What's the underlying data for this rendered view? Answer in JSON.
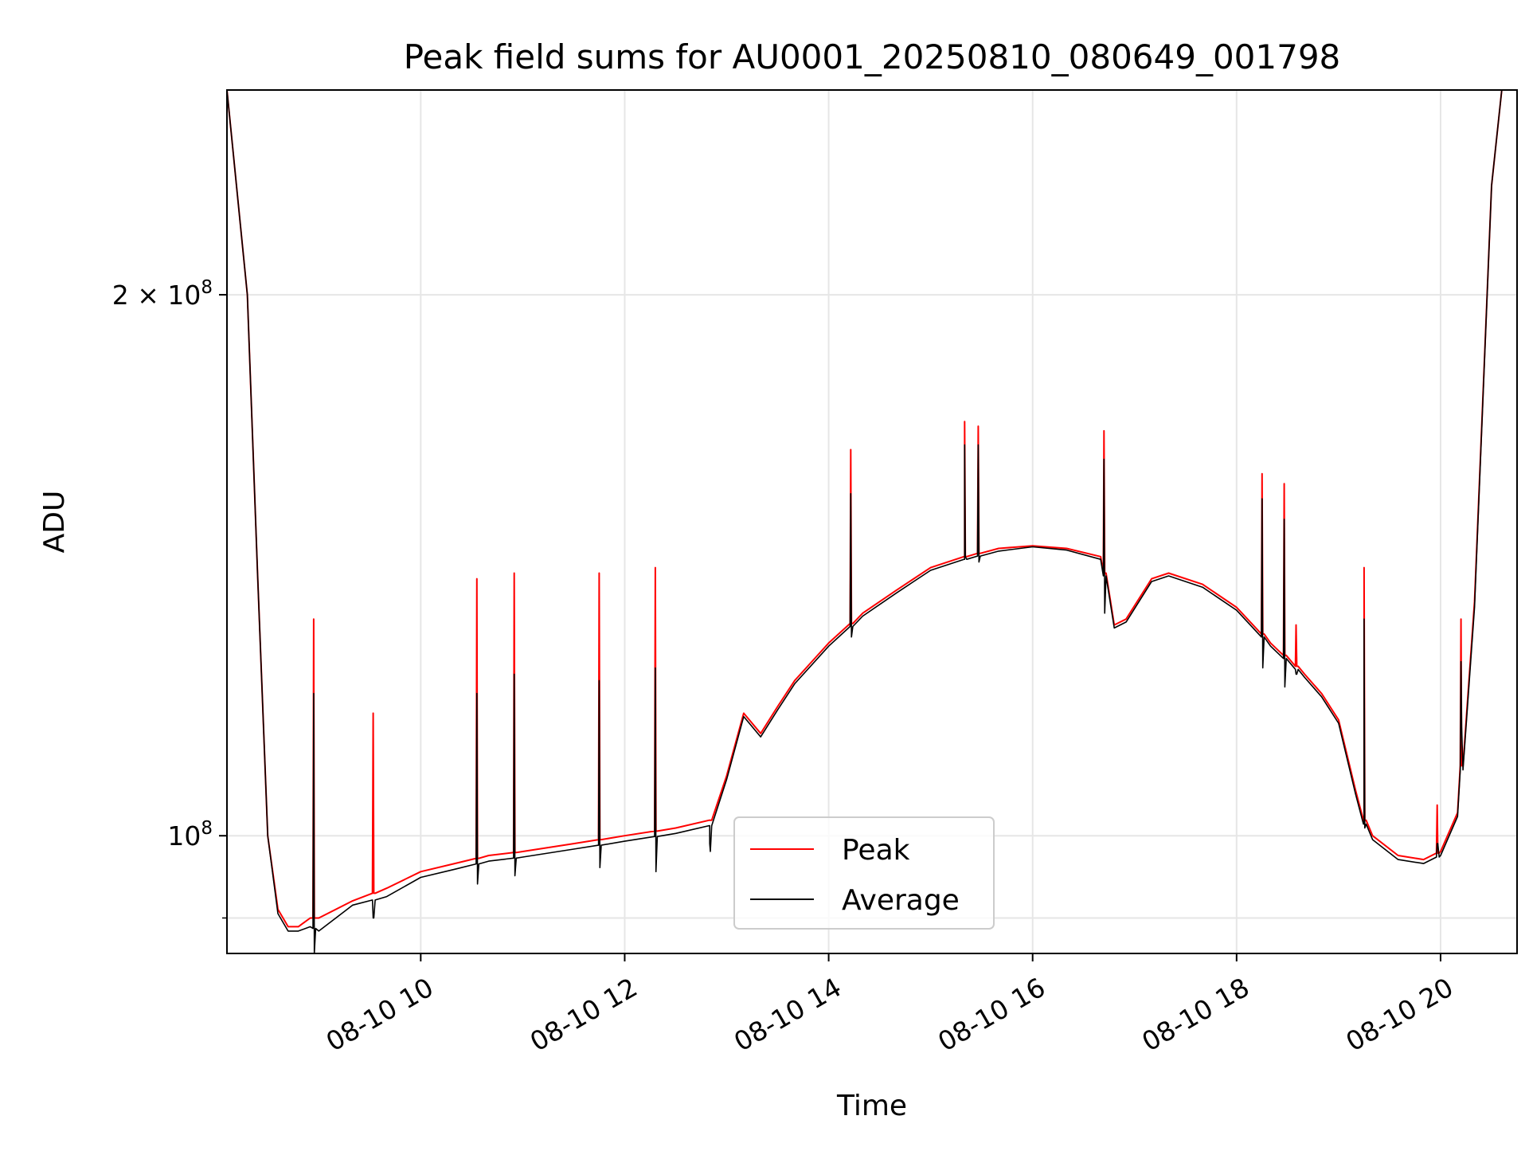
{
  "chart_data": {
    "type": "line",
    "title": "Peak field sums for AU0001_20250810_080649_001798",
    "xlabel": "Time",
    "ylabel": "ADU",
    "x_format": "MM-DD HH",
    "xlim": [
      "2025-08-10 08:06",
      "2025-08-10 20:45"
    ],
    "ylim": [
      86000000,
      260000000
    ],
    "yscale": "log",
    "grid": true,
    "legend_position": "lower-center",
    "x_ticks": [
      "2025-08-10 10:00",
      "2025-08-10 12:00",
      "2025-08-10 14:00",
      "2025-08-10 16:00",
      "2025-08-10 18:00",
      "2025-08-10 20:00"
    ],
    "x_tick_labels": [
      "08-10 10",
      "08-10 12",
      "08-10 14",
      "08-10 16",
      "08-10 18",
      "08-10 20"
    ],
    "y_ticks": [
      200000000,
      100000000
    ],
    "y_tick_labels": [
      {
        "mantissa": "2",
        "times": "×",
        "base": "10",
        "exp": "8"
      },
      {
        "mantissa": "",
        "times": "",
        "base": "10",
        "exp": "8"
      }
    ],
    "y_minor_ticks": [
      90000000
    ],
    "x": [
      "2025-08-10 08:06",
      "2025-08-10 08:18",
      "2025-08-10 08:24",
      "2025-08-10 08:30",
      "2025-08-10 08:36",
      "2025-08-10 08:42",
      "2025-08-10 08:48",
      "2025-08-10 08:55",
      "2025-08-10 09:00",
      "2025-08-10 09:20",
      "2025-08-10 09:40",
      "2025-08-10 10:00",
      "2025-08-10 10:20",
      "2025-08-10 10:40",
      "2025-08-10 11:00",
      "2025-08-10 11:30",
      "2025-08-10 12:00",
      "2025-08-10 12:30",
      "2025-08-10 12:50",
      "2025-08-10 13:00",
      "2025-08-10 13:10",
      "2025-08-10 13:20",
      "2025-08-10 13:30",
      "2025-08-10 13:40",
      "2025-08-10 14:00",
      "2025-08-10 14:20",
      "2025-08-10 14:40",
      "2025-08-10 15:00",
      "2025-08-10 15:20",
      "2025-08-10 15:40",
      "2025-08-10 16:00",
      "2025-08-10 16:20",
      "2025-08-10 16:40",
      "2025-08-10 16:48",
      "2025-08-10 16:55",
      "2025-08-10 17:10",
      "2025-08-10 17:20",
      "2025-08-10 17:40",
      "2025-08-10 18:00",
      "2025-08-10 18:20",
      "2025-08-10 18:40",
      "2025-08-10 18:50",
      "2025-08-10 19:00",
      "2025-08-10 19:10",
      "2025-08-10 19:15",
      "2025-08-10 19:20",
      "2025-08-10 19:35",
      "2025-08-10 19:50",
      "2025-08-10 20:00",
      "2025-08-10 20:10",
      "2025-08-10 20:20",
      "2025-08-10 20:30",
      "2025-08-10 20:36",
      "2025-08-10 20:45"
    ],
    "series": [
      {
        "name": "Peak",
        "color": "#ff0000",
        "values": [
          260000000,
          200000000,
          140000000,
          100000000,
          91000000,
          89000000,
          89000000,
          90000000,
          90000000,
          92000000,
          93500000,
          95500000,
          96500000,
          97500000,
          98000000,
          99000000,
          100000000,
          101000000,
          102000000,
          108000000,
          117000000,
          114000000,
          118000000,
          122000000,
          128000000,
          133000000,
          137000000,
          141000000,
          143000000,
          144500000,
          145000000,
          144500000,
          143000000,
          131000000,
          132000000,
          139000000,
          140000000,
          138000000,
          134000000,
          128000000,
          123000000,
          120000000,
          116000000,
          106000000,
          102000000,
          100000000,
          97500000,
          97000000,
          98000000,
          103000000,
          135000000,
          230000000,
          260000000,
          260000000
        ]
      },
      {
        "name": "Average",
        "color": "#000000",
        "values": [
          260000000,
          200000000,
          140000000,
          100000000,
          90500000,
          88500000,
          88500000,
          89000000,
          88500000,
          91500000,
          92500000,
          94800000,
          95800000,
          96800000,
          97300000,
          98300000,
          99300000,
          100300000,
          101300000,
          107500000,
          116500000,
          113500000,
          117500000,
          121500000,
          127500000,
          132500000,
          136500000,
          140500000,
          142500000,
          144000000,
          144800000,
          144200000,
          142500000,
          130500000,
          131500000,
          138500000,
          139500000,
          137500000,
          133500000,
          127500000,
          122500000,
          119500000,
          115500000,
          105500000,
          101500000,
          99500000,
          97000000,
          96500000,
          97500000,
          102500000,
          134000000,
          230000000,
          260000000,
          260000000
        ]
      }
    ],
    "spikes": [
      {
        "x": "2025-08-10 08:57",
        "peak": 132000000,
        "average": 120000000,
        "low": 86000000
      },
      {
        "x": "2025-08-10 09:32",
        "peak": 117000000,
        "average": 90000000,
        "low": 90000000
      },
      {
        "x": "2025-08-10 10:33",
        "peak": 139000000,
        "average": 120000000,
        "low": 94000000
      },
      {
        "x": "2025-08-10 10:55",
        "peak": 140000000,
        "average": 123000000,
        "low": 95000000
      },
      {
        "x": "2025-08-10 11:45",
        "peak": 140000000,
        "average": 122000000,
        "low": 96000000
      },
      {
        "x": "2025-08-10 12:18",
        "peak": 141000000,
        "average": 124000000,
        "low": 95500000
      },
      {
        "x": "2025-08-10 12:50",
        "peak": 102000000,
        "average": 99000000,
        "low": 98000000
      },
      {
        "x": "2025-08-10 14:13",
        "peak": 164000000,
        "average": 155000000,
        "low": 129000000
      },
      {
        "x": "2025-08-10 15:20",
        "peak": 170000000,
        "average": 165000000,
        "low": 143000000
      },
      {
        "x": "2025-08-10 15:28",
        "peak": 169000000,
        "average": 165000000,
        "low": 142000000
      },
      {
        "x": "2025-08-10 16:42",
        "peak": 168000000,
        "average": 162000000,
        "low": 133000000
      },
      {
        "x": "2025-08-10 18:15",
        "peak": 159000000,
        "average": 154000000,
        "low": 124000000
      },
      {
        "x": "2025-08-10 18:28",
        "peak": 157000000,
        "average": 150000000,
        "low": 121000000
      },
      {
        "x": "2025-08-10 18:35",
        "peak": 131000000,
        "average": 123000000,
        "low": 123000000
      },
      {
        "x": "2025-08-10 19:15",
        "peak": 141000000,
        "average": 132000000,
        "low": 101000000
      },
      {
        "x": "2025-08-10 19:58",
        "peak": 104000000,
        "average": 99000000,
        "low": 99000000
      },
      {
        "x": "2025-08-10 20:12",
        "peak": 132000000,
        "average": 125000000,
        "low": 115000000
      }
    ]
  }
}
